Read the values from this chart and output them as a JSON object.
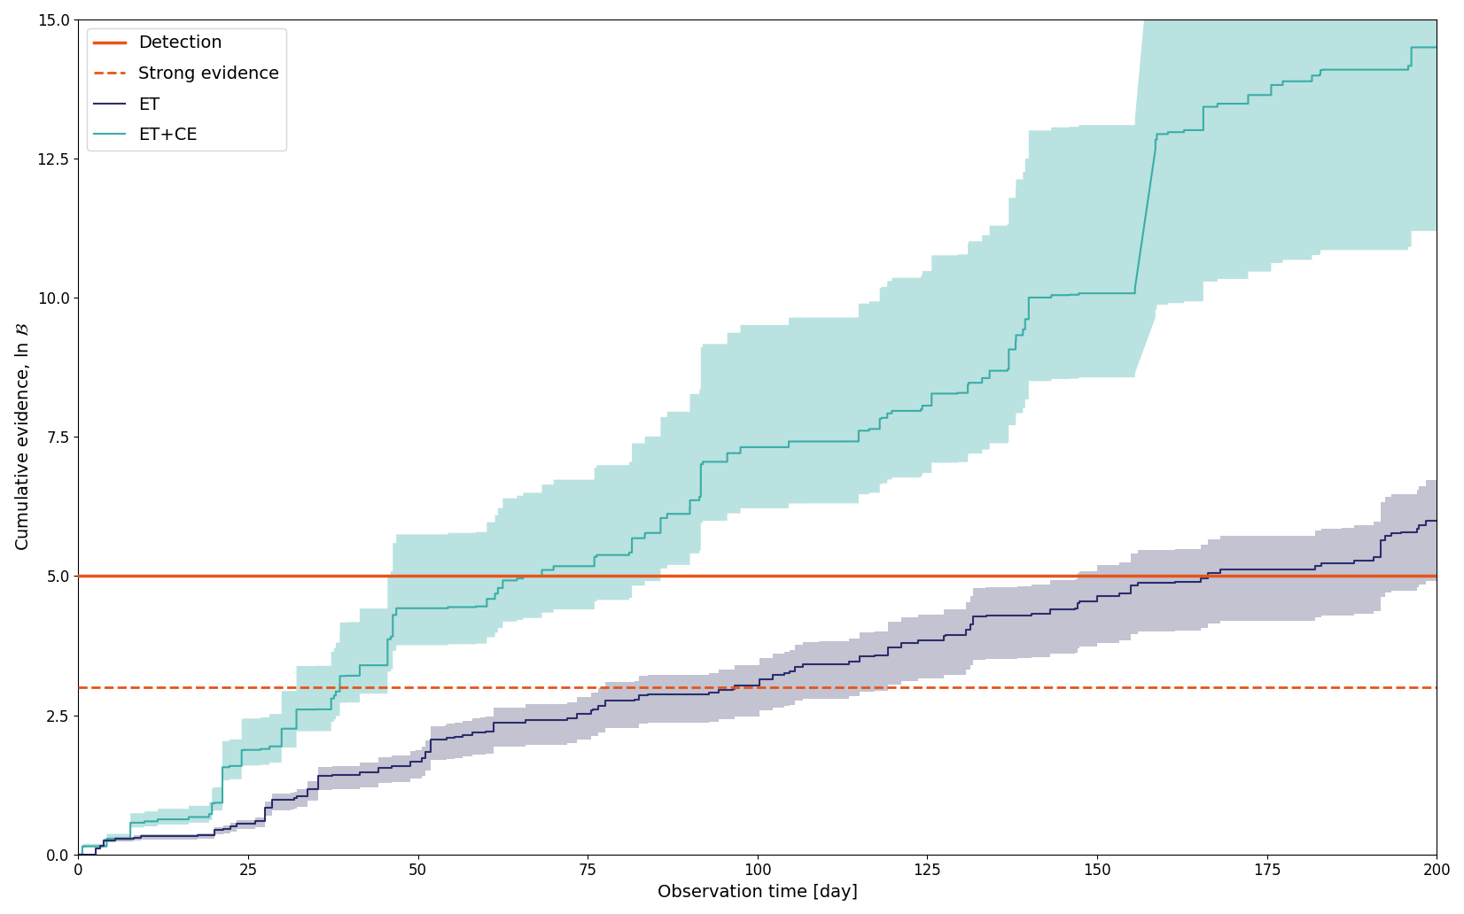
{
  "xlabel": "Observation time [day]",
  "ylabel": "Cumulative evidence, ln $\\mathcal{B}$",
  "xlim": [
    0,
    200
  ],
  "ylim": [
    0,
    15.0
  ],
  "xticks": [
    0,
    25,
    50,
    75,
    100,
    125,
    150,
    175,
    200
  ],
  "yticks": [
    0.0,
    2.5,
    5.0,
    7.5,
    10.0,
    12.5,
    15.0
  ],
  "detection_level": 5.0,
  "strong_evidence_level": 3.0,
  "detection_color": "#e8541a",
  "et_color": "#2b2d6e",
  "et_fill_color": "#7a7a9a",
  "etce_color": "#3aada8",
  "etce_fill_color": "#3aada8",
  "et_fill_alpha": 0.45,
  "etce_fill_alpha": 0.35,
  "legend_fontsize": 14,
  "axis_fontsize": 14,
  "tick_fontsize": 12,
  "figsize": [
    16.52,
    10.32
  ],
  "dpi": 100
}
